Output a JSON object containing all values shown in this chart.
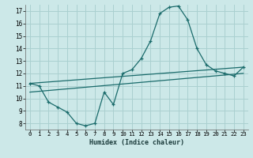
{
  "xlabel": "Humidex (Indice chaleur)",
  "bg_color": "#cce8e8",
  "grid_color": "#aad0d0",
  "line_color": "#1a6b6b",
  "xlim": [
    -0.5,
    23.5
  ],
  "ylim": [
    7.5,
    17.5
  ],
  "yticks": [
    8,
    9,
    10,
    11,
    12,
    13,
    14,
    15,
    16,
    17
  ],
  "xticks": [
    0,
    1,
    2,
    3,
    4,
    5,
    6,
    7,
    8,
    9,
    10,
    11,
    12,
    13,
    14,
    15,
    16,
    17,
    18,
    19,
    20,
    21,
    22,
    23
  ],
  "line1_x": [
    0,
    1,
    2,
    3,
    4,
    5,
    6,
    7,
    8,
    9,
    10,
    11,
    12,
    13,
    14,
    15,
    16,
    17,
    18,
    19,
    20,
    21,
    22,
    23
  ],
  "line1_y": [
    11.2,
    11.0,
    9.7,
    9.3,
    8.9,
    8.0,
    7.8,
    8.0,
    10.5,
    9.5,
    12.0,
    12.3,
    13.2,
    14.6,
    16.8,
    17.3,
    17.4,
    16.3,
    14.0,
    12.7,
    12.2,
    12.0,
    11.8,
    12.5
  ],
  "line2_x": [
    0,
    23
  ],
  "line2_y": [
    11.2,
    12.5
  ],
  "line3_x": [
    0,
    23
  ],
  "line3_y": [
    10.5,
    12.0
  ],
  "xlabel_fontsize": 6.0,
  "tick_fontsize": 5.2,
  "ytick_fontsize": 5.5
}
